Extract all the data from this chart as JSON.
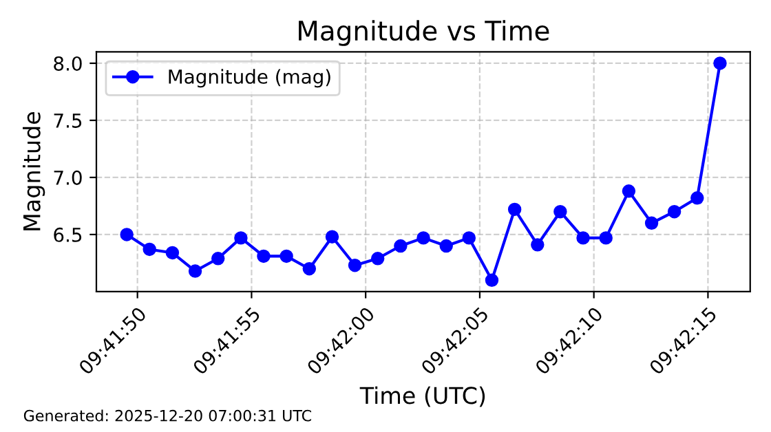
{
  "chart_data": {
    "type": "line",
    "title": "Magnitude vs Time",
    "xlabel": "Time (UTC)",
    "ylabel": "Magnitude",
    "annotations": [
      "Generated: 2025-12-20 07:00:31 UTC"
    ],
    "x": [
      9.697092,
      9.697369,
      9.697647,
      9.697925,
      9.698203,
      9.698481,
      9.698758,
      9.699036,
      9.699314,
      9.699592,
      9.699869,
      9.700147,
      9.700425,
      9.700703,
      9.700981,
      9.701258,
      9.701536,
      9.701814,
      9.702092,
      9.702369,
      9.702647,
      9.702925,
      9.703203,
      9.703481,
      9.703758,
      9.704036,
      9.704314
    ],
    "series": [
      {
        "name": "Magnitude (mag)",
        "color": "#0000ff",
        "values": [
          6.5,
          6.37,
          6.34,
          6.18,
          6.29,
          6.47,
          6.31,
          6.31,
          6.2,
          6.48,
          6.23,
          6.29,
          6.4,
          6.47,
          6.4,
          6.47,
          6.1,
          6.72,
          6.41,
          6.7,
          6.47,
          6.47,
          6.88,
          6.6,
          6.7,
          6.82,
          8.0
        ]
      }
    ],
    "xlim": [
      9.696722,
      9.704681
    ],
    "xticks": [
      {
        "value": 9.697222,
        "label": "09:41:50"
      },
      {
        "value": 9.698611,
        "label": "09:41:55"
      },
      {
        "value": 9.7,
        "label": "09:42:00"
      },
      {
        "value": 9.701389,
        "label": "09:42:05"
      },
      {
        "value": 9.702778,
        "label": "09:42:10"
      },
      {
        "value": 9.704167,
        "label": "09:42:15"
      }
    ],
    "ylim": [
      6.0,
      8.1
    ],
    "yticks": [
      6.5,
      {
        "value": 7,
        "label": "7.0"
      },
      7.5,
      {
        "value": 8,
        "label": "8.0"
      }
    ],
    "grid": true,
    "legend": "top left",
    "marker": "circle",
    "line_style": "solid"
  }
}
